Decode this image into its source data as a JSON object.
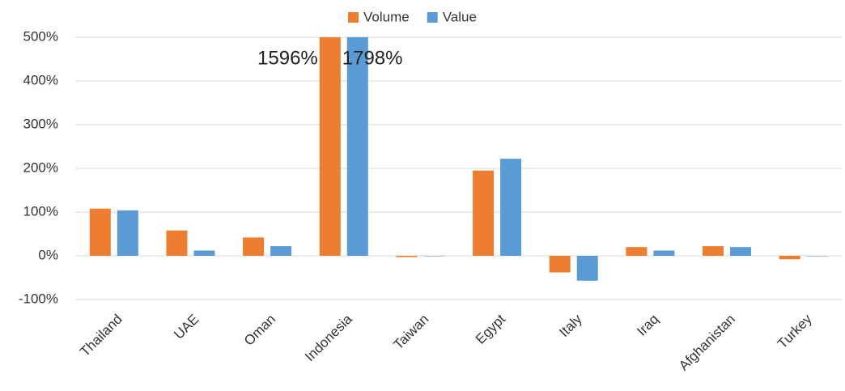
{
  "chart_data": {
    "type": "bar",
    "categories": [
      "Thailand",
      "UAE",
      "Oman",
      "Indonesia",
      "Taiwan",
      "Egypt",
      "Italy",
      "Iraq",
      "Afghanistan",
      "Turkey"
    ],
    "series": [
      {
        "name": "Volume",
        "color": "#ed7d31",
        "values": [
          108,
          58,
          42,
          1596,
          -3,
          195,
          -38,
          20,
          22,
          -8
        ],
        "value_labels": [
          null,
          null,
          null,
          "1596%",
          null,
          null,
          null,
          null,
          null,
          null
        ]
      },
      {
        "name": "Value",
        "color": "#5b9bd5",
        "values": [
          104,
          12,
          22,
          1798,
          -1,
          222,
          -57,
          12,
          20,
          -1
        ],
        "value_labels": [
          null,
          null,
          null,
          "1798%",
          null,
          null,
          null,
          null,
          null,
          null
        ]
      }
    ],
    "ylim": [
      -100,
      500
    ],
    "yticks": [
      {
        "value": -100,
        "label": "-100%"
      },
      {
        "value": 0,
        "label": "0%"
      },
      {
        "value": 100,
        "label": "100%"
      },
      {
        "value": 200,
        "label": "200%"
      },
      {
        "value": 300,
        "label": "300%"
      },
      {
        "value": 400,
        "label": "400%"
      },
      {
        "value": 500,
        "label": "500%"
      }
    ],
    "grid": true,
    "legend": "top"
  }
}
